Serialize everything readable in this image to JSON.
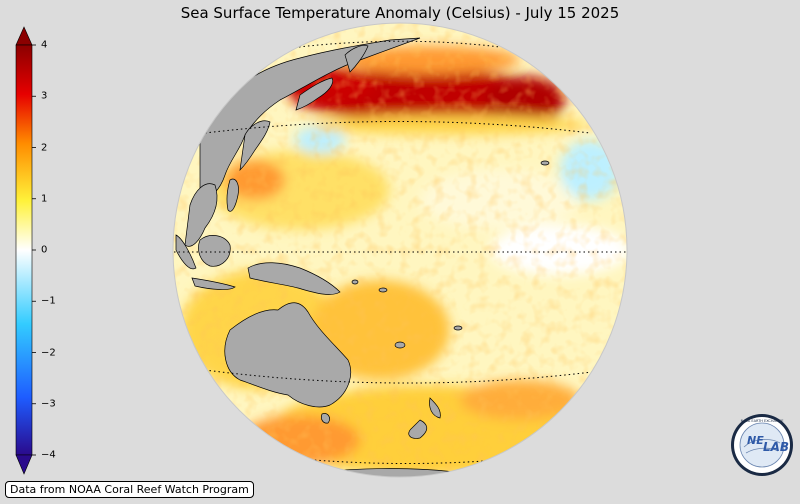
{
  "title": "Sea Surface Temperature Anomaly (Celsius) - July 15 2025",
  "credit": "Data from NOAA Coral Reef Watch Program",
  "logo": {
    "text_left": "NE",
    "text_right": "LAB",
    "ring_text": "NASA EARTH EXCHANGE"
  },
  "colorbar": {
    "min": -4,
    "max": 4,
    "ticks": [
      {
        "value": 4,
        "label": "4"
      },
      {
        "value": 3,
        "label": "3"
      },
      {
        "value": 2,
        "label": "2"
      },
      {
        "value": 1,
        "label": "1"
      },
      {
        "value": 0,
        "label": "0"
      },
      {
        "value": -1,
        "label": "−1"
      },
      {
        "value": -2,
        "label": "−2"
      },
      {
        "value": -3,
        "label": "−3"
      },
      {
        "value": -4,
        "label": "−4"
      }
    ],
    "colors": [
      "#2a0a8c",
      "#1e5cff",
      "#33ccff",
      "#ffffff",
      "#fff23a",
      "#ff8c00",
      "#e60000",
      "#8b0000"
    ]
  },
  "map": {
    "projection": "orthographic",
    "ocean_colors": {
      "neutral": "#fffbe0",
      "warm": "#ffd54a",
      "hot": "#ff8a1e",
      "extreme": "#b00000",
      "cool": "#a8eaff"
    },
    "land_color": "#a9a9a9"
  }
}
